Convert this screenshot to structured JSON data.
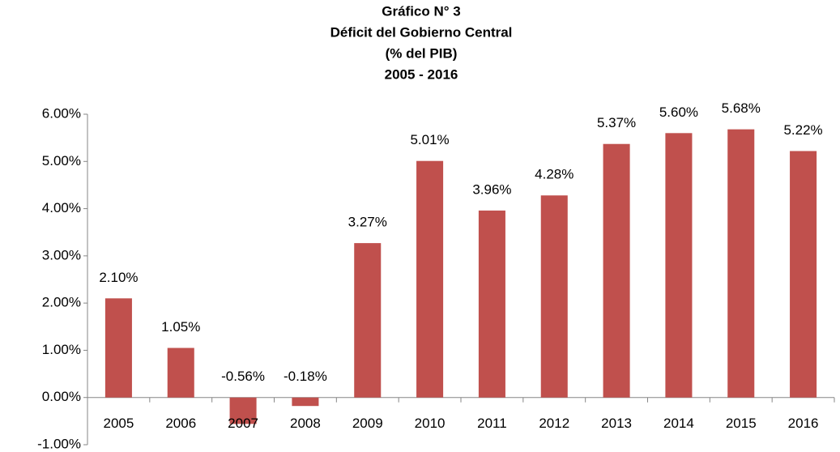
{
  "chart_data": {
    "type": "bar",
    "title": [
      "Gráfico N° 3",
      "Déficit del Gobierno Central",
      "(% del PIB)",
      "2005 - 2016"
    ],
    "categories": [
      "2005",
      "2006",
      "2007",
      "2008",
      "2009",
      "2010",
      "2011",
      "2012",
      "2013",
      "2014",
      "2015",
      "2016"
    ],
    "values": [
      2.1,
      1.05,
      -0.56,
      -0.18,
      3.27,
      5.01,
      3.96,
      4.28,
      5.37,
      5.6,
      5.68,
      5.22
    ],
    "value_labels": [
      "2.10%",
      "1.05%",
      "-0.56%",
      "-0.18%",
      "3.27%",
      "5.01%",
      "3.96%",
      "4.28%",
      "5.37%",
      "5.60%",
      "5.68%",
      "5.22%"
    ],
    "color": "#c0504d",
    "ylim": [
      -1,
      6
    ],
    "yticks": [
      {
        "value": -1,
        "label": "-1.00%"
      },
      {
        "value": 0,
        "label": "0.00%"
      },
      {
        "value": 1,
        "label": "1.00%"
      },
      {
        "value": 2,
        "label": "2.00%"
      },
      {
        "value": 3,
        "label": "3.00%"
      },
      {
        "value": 4,
        "label": "4.00%"
      },
      {
        "value": 5,
        "label": "5.00%"
      },
      {
        "value": 6,
        "label": "6.00%"
      }
    ],
    "grid": false
  }
}
